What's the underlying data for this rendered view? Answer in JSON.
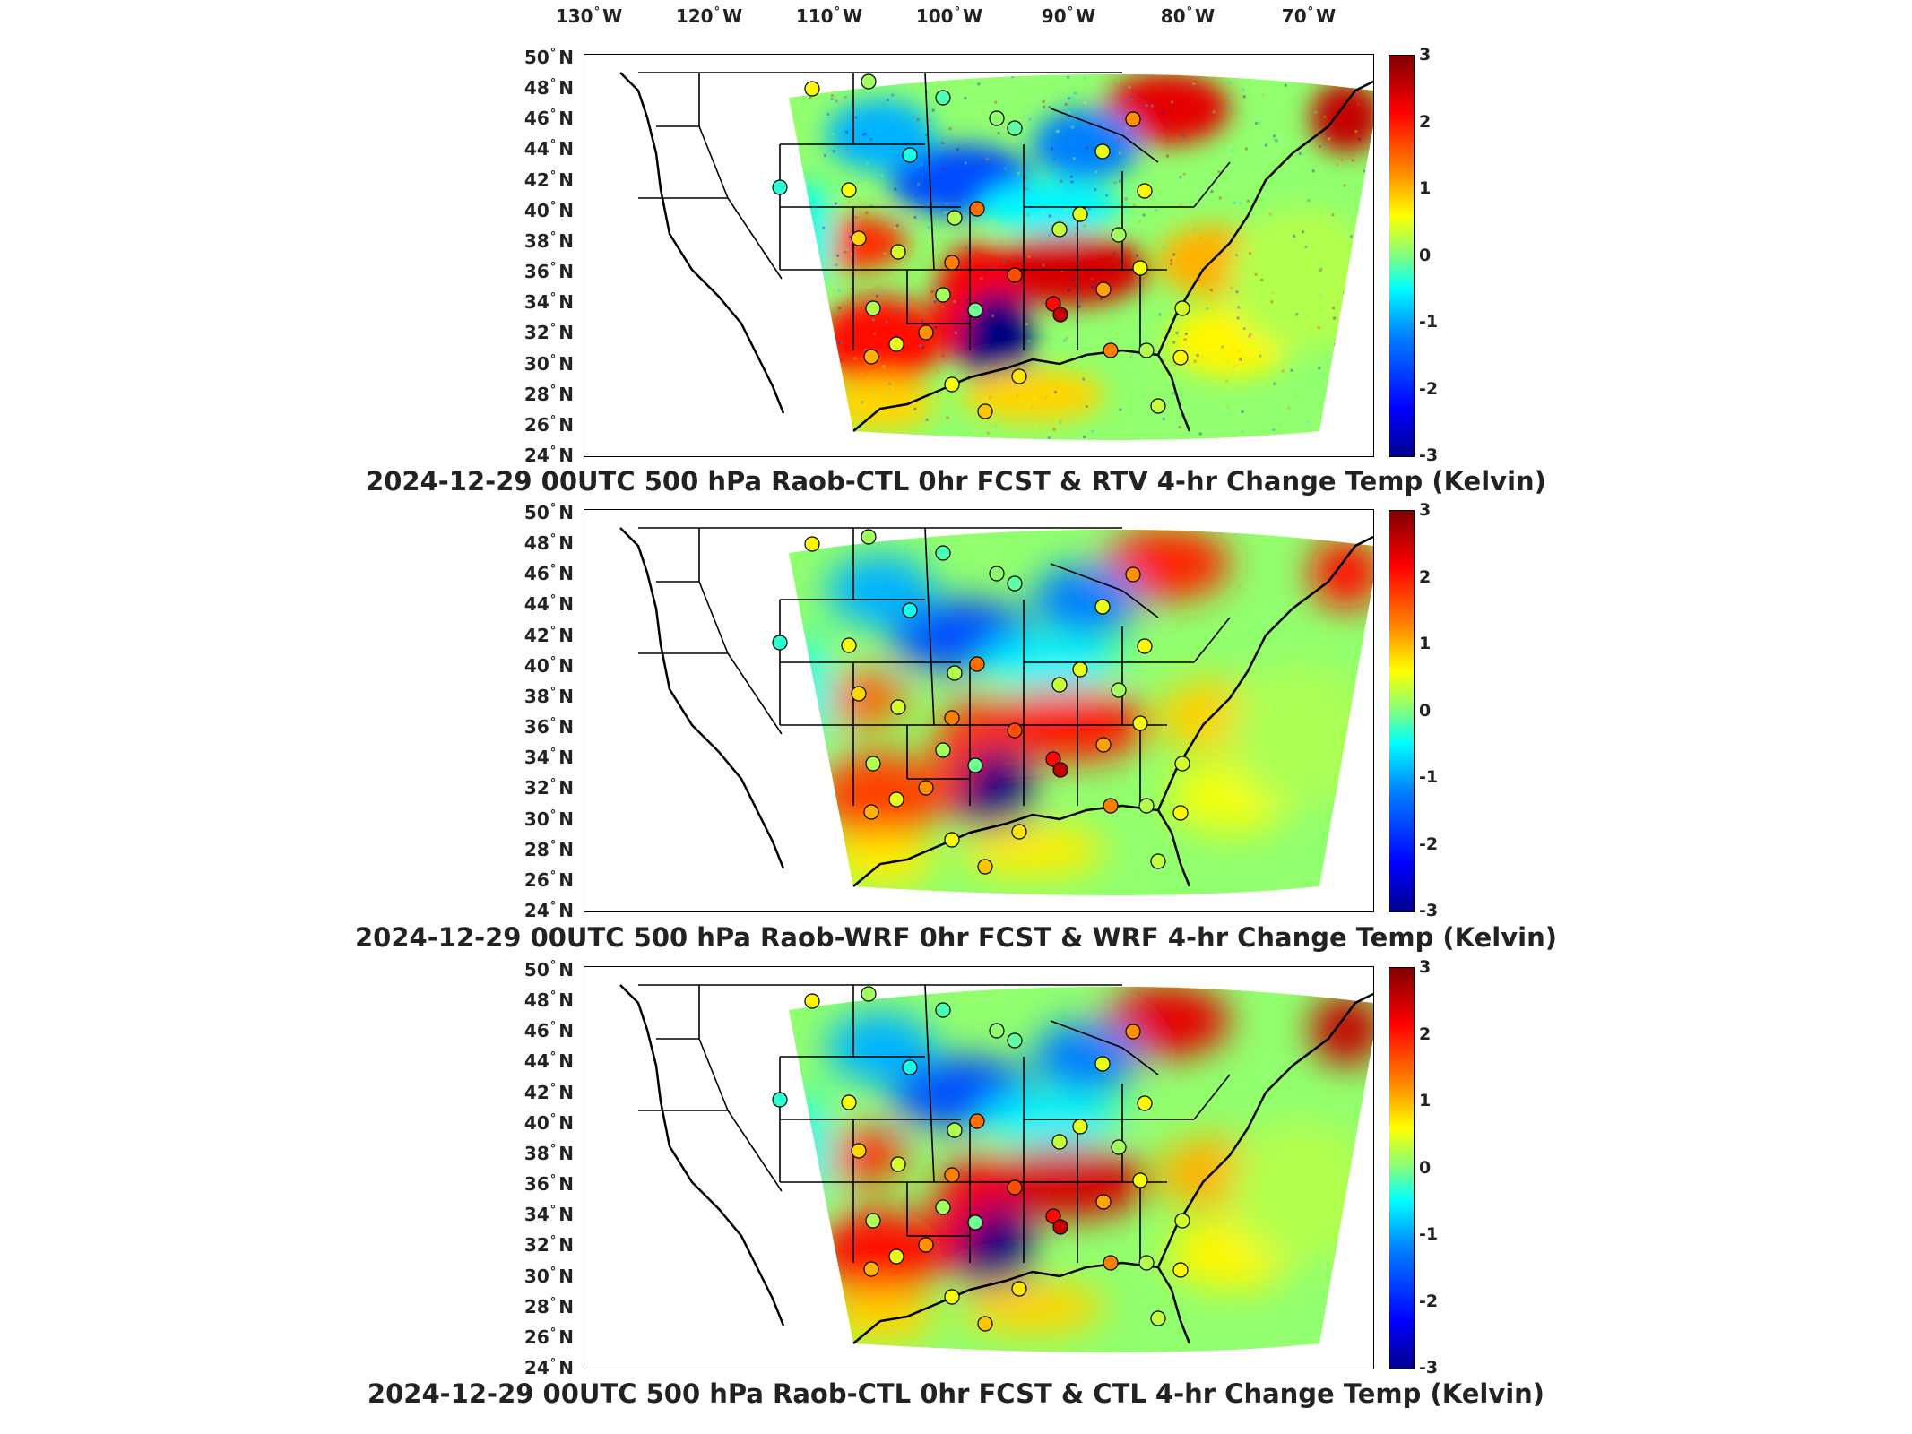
{
  "longitude_labels": [
    {
      "value": "130",
      "hemi": "W"
    },
    {
      "value": "120",
      "hemi": "W"
    },
    {
      "value": "110",
      "hemi": "W"
    },
    {
      "value": "100",
      "hemi": "W"
    },
    {
      "value": "90",
      "hemi": "W"
    },
    {
      "value": "80",
      "hemi": "W"
    },
    {
      "value": "70",
      "hemi": "W"
    }
  ],
  "latitude_labels": [
    "50",
    "48",
    "46",
    "44",
    "42",
    "40",
    "38",
    "36",
    "34",
    "32",
    "30",
    "28",
    "26",
    "24"
  ],
  "lat_hemi": "N",
  "degree_symbol": "°",
  "colorbar": {
    "ticks": [
      "3",
      "2",
      "1",
      "0",
      "-1",
      "-2",
      "-3"
    ],
    "range": [
      -3,
      3
    ],
    "colormap": "jet",
    "colors": [
      "#00008f",
      "#0000ff",
      "#00ffff",
      "#ffff00",
      "#ff0000",
      "#800000"
    ]
  },
  "panels": [
    {
      "title": "2024-12-29 00UTC 500 hPa Raob-CTL 0hr FCST & RTV 4-hr Change Temp (Kelvin)"
    },
    {
      "title": "2024-12-29 00UTC 500 hPa Raob-WRF 0hr FCST & WRF 4-hr Change Temp (Kelvin)"
    },
    {
      "title": "2024-12-29 00UTC 500 hPa Raob-CTL 0hr FCST & CTL 4-hr Change Temp (Kelvin)"
    }
  ],
  "raob_stations": [
    {
      "name": "s1",
      "value": 0.8
    },
    {
      "name": "s2",
      "value": 0.2
    },
    {
      "name": "s3",
      "value": -0.3
    },
    {
      "name": "s4",
      "value": 0.1
    },
    {
      "name": "s5",
      "value": -0.5
    },
    {
      "name": "s6",
      "value": -0.6
    },
    {
      "name": "s7",
      "value": 0.6
    },
    {
      "name": "s8",
      "value": -0.2
    },
    {
      "name": "s9",
      "value": 1.6
    },
    {
      "name": "s10",
      "value": 0.7
    },
    {
      "name": "s11",
      "value": 0.4
    },
    {
      "name": "s12",
      "value": 1.4
    },
    {
      "name": "s13",
      "value": 0.6
    },
    {
      "name": "s14",
      "value": 0.3
    },
    {
      "name": "s15",
      "value": 1.5
    },
    {
      "name": "s16",
      "value": 1.0
    },
    {
      "name": "s17",
      "value": 1.8
    },
    {
      "name": "s18",
      "value": 0.2
    },
    {
      "name": "s19",
      "value": 0.8
    },
    {
      "name": "s20",
      "value": 2.2
    },
    {
      "name": "s21",
      "value": 1.3
    },
    {
      "name": "s22",
      "value": 0.7
    },
    {
      "name": "s23",
      "value": 2.6
    },
    {
      "name": "s24",
      "value": 0.5
    },
    {
      "name": "s25",
      "value": 1.5
    },
    {
      "name": "s26",
      "value": 0.3
    },
    {
      "name": "s27",
      "value": 0.8
    },
    {
      "name": "s28",
      "value": 1.2
    },
    {
      "name": "s29",
      "value": 0.6
    },
    {
      "name": "s30",
      "value": 1.4
    },
    {
      "name": "s31",
      "value": 0.2
    },
    {
      "name": "s32",
      "value": -0.1
    },
    {
      "name": "s33",
      "value": 0.5
    },
    {
      "name": "s34",
      "value": 0.3
    },
    {
      "name": "s35",
      "value": 0.9
    },
    {
      "name": "s36",
      "value": 1.1
    },
    {
      "name": "s37",
      "value": 0.7
    },
    {
      "name": "s38",
      "value": 0.4
    }
  ]
}
